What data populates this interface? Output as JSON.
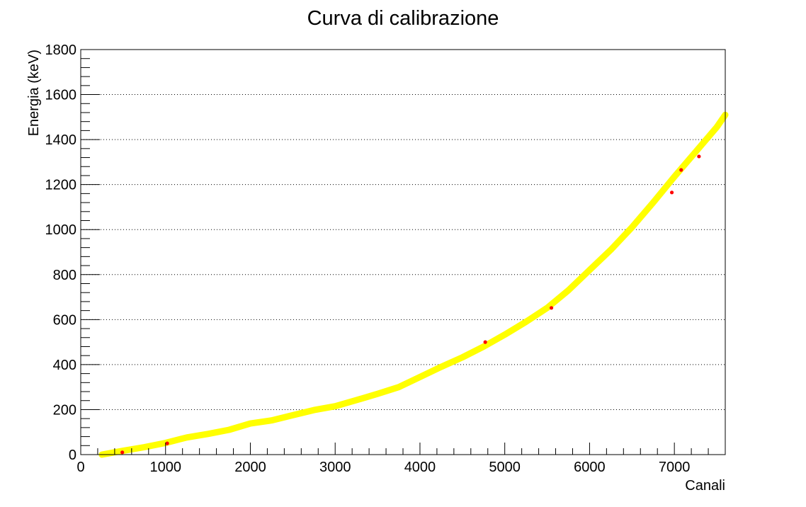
{
  "chart_data": {
    "type": "scatter",
    "title": "Curva di calibrazione",
    "xlabel": "Canali",
    "ylabel": "Energia (keV)",
    "xlim": [
      0,
      7600
    ],
    "ylim": [
      0,
      1800
    ],
    "x_ticks": [
      0,
      1000,
      2000,
      3000,
      4000,
      5000,
      6000,
      7000
    ],
    "y_ticks": [
      0,
      200,
      400,
      600,
      800,
      1000,
      1200,
      1400,
      1600,
      1800
    ],
    "grid": "horizontal dotted",
    "series": [
      {
        "type": "scatter",
        "color": "#ff0000",
        "points": [
          {
            "x": 490,
            "y": 10
          },
          {
            "x": 1020,
            "y": 50
          },
          {
            "x": 4770,
            "y": 500
          },
          {
            "x": 5550,
            "y": 652
          },
          {
            "x": 6970,
            "y": 1165
          },
          {
            "x": 7080,
            "y": 1265
          },
          {
            "x": 7290,
            "y": 1325
          }
        ]
      },
      {
        "type": "line",
        "color": "#ffff00",
        "x": [
          250,
          500,
          750,
          1000,
          1250,
          1500,
          1750,
          2000,
          2250,
          2500,
          2750,
          3000,
          3250,
          3500,
          3750,
          4000,
          4250,
          4500,
          4750,
          5000,
          5250,
          5500,
          5750,
          6000,
          6250,
          6500,
          6750,
          7000,
          7250,
          7500,
          7600
        ],
        "y": [
          0,
          17,
          33,
          52,
          76,
          92,
          110,
          138,
          152,
          175,
          198,
          215,
          242,
          270,
          300,
          345,
          390,
          432,
          480,
          533,
          590,
          652,
          730,
          820,
          910,
          1010,
          1120,
          1235,
          1345,
          1455,
          1510
        ]
      }
    ]
  }
}
